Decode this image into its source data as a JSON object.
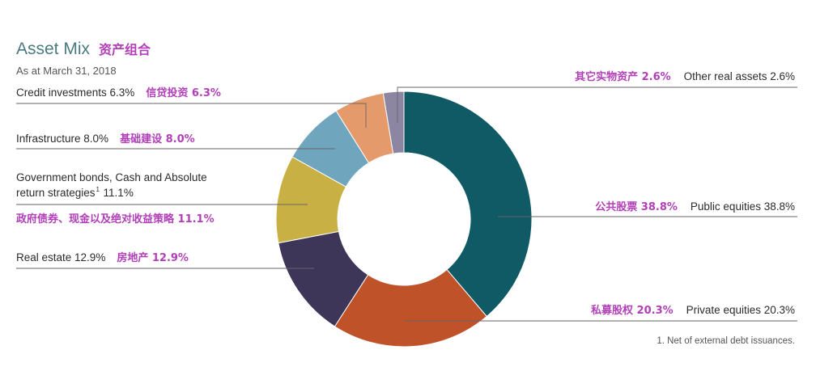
{
  "chart_data": {
    "type": "pie",
    "variant": "donut",
    "title": "Asset Mix",
    "title_cn": "资产组合",
    "subtitle": "As at March 31, 2018",
    "unit": "%",
    "slices": [
      {
        "label": "Public equities",
        "label_cn": "公共股票",
        "value": 38.8,
        "value_text": "38.8%",
        "color": "#0f5a64"
      },
      {
        "label": "Private equities",
        "label_cn": "私募股权",
        "value": 20.3,
        "value_text": "20.3%",
        "color": "#c0522a"
      },
      {
        "label": "Real estate",
        "label_cn": "房地产",
        "value": 12.9,
        "value_text": "12.9%",
        "color": "#3e3659"
      },
      {
        "label": "Government bonds, Cash and Absolute return strategies",
        "label_line1": "Government bonds, Cash and Absolute",
        "label_line2": "return strategies",
        "footnote_marker": "1",
        "label_cn": "政府债券、现金以及绝对收益策略",
        "value": 11.1,
        "value_text": "11.1%",
        "color": "#c8b045"
      },
      {
        "label": "Infrastructure",
        "label_cn": "基础建设",
        "value": 8.0,
        "value_text": "8.0%",
        "color": "#6fa5bd"
      },
      {
        "label": "Credit investments",
        "label_cn": "信贷投资",
        "value": 6.3,
        "value_text": "6.3%",
        "color": "#e59a6c"
      },
      {
        "label": "Other real assets",
        "label_cn": "其它实物资产",
        "value": 2.6,
        "value_text": "2.6%",
        "color": "#8c86a2"
      }
    ],
    "footnote": "1.  Net of external debt issuances."
  }
}
